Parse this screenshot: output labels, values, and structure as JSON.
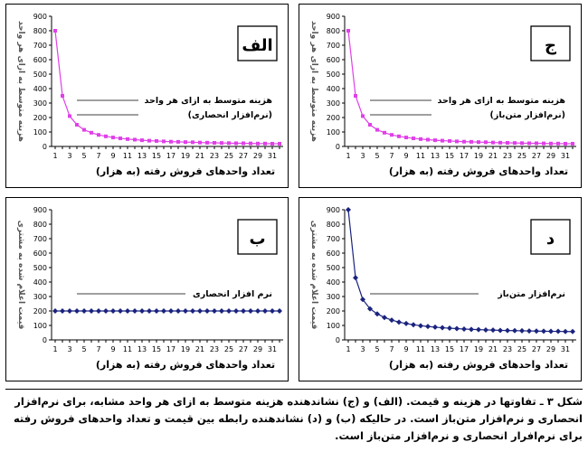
{
  "chart_data": [
    {
      "type": "line",
      "badge": "الف",
      "xlabel": "تعداد واحدهای فروش رفته (به هزار)",
      "ylabel": "هزینه متوسط به ازای هر واحد",
      "series_label_lines": [
        "هزینه متوسط به ازای هر واحد",
        "(نرم‌افزار انحصاری)"
      ],
      "color": "#e040e8",
      "marker": "square",
      "ylim": [
        0,
        900
      ],
      "yticks": [
        0,
        100,
        200,
        300,
        400,
        500,
        600,
        700,
        800,
        900
      ],
      "x": [
        1,
        2,
        3,
        4,
        5,
        6,
        7,
        8,
        9,
        10,
        11,
        12,
        13,
        14,
        15,
        16,
        17,
        18,
        19,
        20,
        21,
        22,
        23,
        24,
        25,
        26,
        27,
        28,
        29,
        30,
        31,
        32
      ],
      "xtick_labels": [
        "1",
        "3",
        "5",
        "7",
        "9",
        "11",
        "13",
        "15",
        "17",
        "19",
        "21",
        "23",
        "25",
        "27",
        "29",
        "31"
      ],
      "values": [
        800,
        350,
        210,
        150,
        115,
        95,
        80,
        70,
        62,
        56,
        51,
        47,
        43,
        40,
        38,
        35,
        33,
        32,
        30,
        29,
        27,
        26,
        25,
        24,
        23,
        22,
        22,
        21,
        20,
        20,
        19,
        19
      ]
    },
    {
      "type": "line",
      "badge": "ج",
      "xlabel": "تعداد واحدهای فروش رفته (به هزار)",
      "ylabel": "هزینه متوسط به ازای هر واحد",
      "series_label_lines": [
        "هزینه متوسط به ازای هر واحد",
        "(نرم‌افزار متن‌باز)"
      ],
      "color": "#e040e8",
      "marker": "square",
      "ylim": [
        0,
        900
      ],
      "yticks": [
        0,
        100,
        200,
        300,
        400,
        500,
        600,
        700,
        800,
        900
      ],
      "x": [
        1,
        2,
        3,
        4,
        5,
        6,
        7,
        8,
        9,
        10,
        11,
        12,
        13,
        14,
        15,
        16,
        17,
        18,
        19,
        20,
        21,
        22,
        23,
        24,
        25,
        26,
        27,
        28,
        29,
        30,
        31,
        32
      ],
      "xtick_labels": [
        "1",
        "3",
        "5",
        "7",
        "9",
        "11",
        "13",
        "15",
        "17",
        "19",
        "21",
        "23",
        "25",
        "27",
        "29",
        "31"
      ],
      "values": [
        800,
        350,
        210,
        150,
        115,
        95,
        80,
        70,
        62,
        56,
        51,
        47,
        43,
        40,
        38,
        35,
        33,
        32,
        30,
        29,
        27,
        26,
        25,
        24,
        23,
        22,
        22,
        21,
        20,
        20,
        19,
        19
      ]
    },
    {
      "type": "line",
      "badge": "ب",
      "xlabel": "تعداد واحدهای فروش رفته (به هزار)",
      "ylabel": "قیمت اعلام شده به مشتری",
      "series_label_lines": [
        "نرم افزار انحصاری"
      ],
      "color": "#1a237e",
      "marker": "diamond",
      "ylim": [
        0,
        900
      ],
      "yticks": [
        0,
        100,
        200,
        300,
        400,
        500,
        600,
        700,
        800,
        900
      ],
      "x": [
        1,
        2,
        3,
        4,
        5,
        6,
        7,
        8,
        9,
        10,
        11,
        12,
        13,
        14,
        15,
        16,
        17,
        18,
        19,
        20,
        21,
        22,
        23,
        24,
        25,
        26,
        27,
        28,
        29,
        30,
        31,
        32
      ],
      "xtick_labels": [
        "1",
        "3",
        "5",
        "7",
        "9",
        "11",
        "13",
        "15",
        "17",
        "19",
        "21",
        "23",
        "25",
        "27",
        "29",
        "31"
      ],
      "values": [
        200,
        200,
        200,
        200,
        200,
        200,
        200,
        200,
        200,
        200,
        200,
        200,
        200,
        200,
        200,
        200,
        200,
        200,
        200,
        200,
        200,
        200,
        200,
        200,
        200,
        200,
        200,
        200,
        200,
        200,
        200,
        200
      ]
    },
    {
      "type": "line",
      "badge": "د",
      "xlabel": "تعداد واحدهای فروش رفته (به هزار)",
      "ylabel": "قیمت اعلام شده به مشتری",
      "series_label_lines": [
        "نرم‌افزار متن‌باز"
      ],
      "color": "#1a237e",
      "marker": "diamond",
      "ylim": [
        0,
        900
      ],
      "yticks": [
        0,
        100,
        200,
        300,
        400,
        500,
        600,
        700,
        800,
        900
      ],
      "x": [
        1,
        2,
        3,
        4,
        5,
        6,
        7,
        8,
        9,
        10,
        11,
        12,
        13,
        14,
        15,
        16,
        17,
        18,
        19,
        20,
        21,
        22,
        23,
        24,
        25,
        26,
        27,
        28,
        29,
        30,
        31,
        32
      ],
      "xtick_labels": [
        "1",
        "3",
        "5",
        "7",
        "9",
        "11",
        "13",
        "15",
        "17",
        "19",
        "21",
        "23",
        "25",
        "27",
        "29",
        "31"
      ],
      "values": [
        900,
        430,
        280,
        215,
        180,
        155,
        137,
        123,
        113,
        105,
        98,
        93,
        88,
        84,
        81,
        78,
        75,
        73,
        71,
        69,
        68,
        66,
        65,
        64,
        63,
        62,
        61,
        60,
        59,
        59,
        58,
        58
      ]
    }
  ],
  "caption": {
    "lines": [
      "شکل ۳ ـ تفاوتها در هزینه و قیمت. (الف) و (ج) نشاندهنده هزینه متوسط به ازای هر واحد مشابه، برای نرم‌افزار",
      "انحصاری و نرم‌افزار متن‌باز است. در حالیکه (ب) و (د) نشاندهنده رابطه بین قیمت و تعداد واحدهای فروش رفته",
      "برای نرم‌افرار انحصاری و نرم‌افزار متن‌باز است."
    ]
  }
}
